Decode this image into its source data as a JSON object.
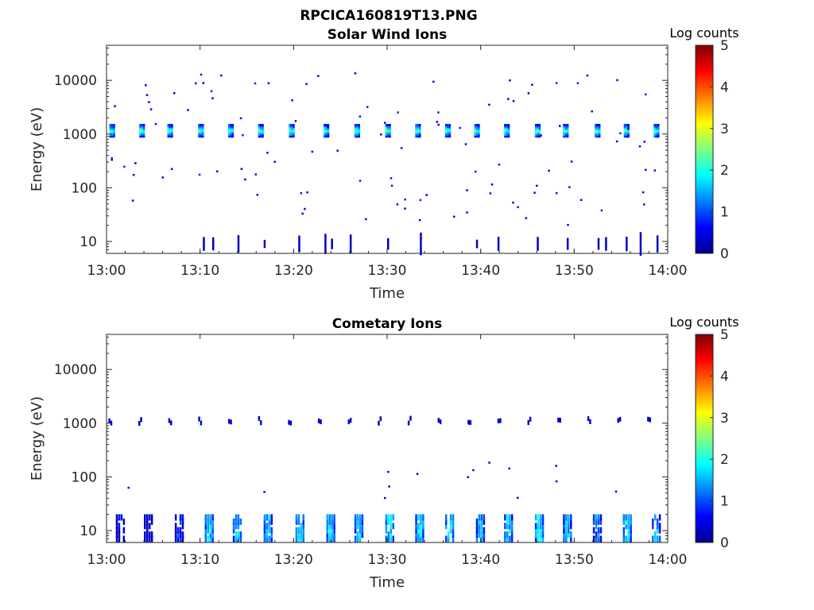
{
  "figure": {
    "title": "RPCICA160819T13.PNG"
  },
  "chart_data": [
    {
      "type": "heatmap",
      "title": "Solar Wind Ions",
      "xlabel": "Time",
      "ylabel": "Energy (eV)",
      "x_ticks": [
        "13:00",
        "13:10",
        "13:20",
        "13:30",
        "13:40",
        "13:50",
        "14:00"
      ],
      "y_ticks": [
        "10",
        "100",
        "1000",
        "10000"
      ],
      "y_scale": "log",
      "ylim": [
        6,
        45000
      ],
      "xlim": [
        "13:00",
        "14:00"
      ],
      "colorbar": {
        "label": "Log counts",
        "ticks": [
          "0",
          "1",
          "2",
          "3",
          "4",
          "5"
        ],
        "range": [
          0,
          5
        ],
        "colormap": "jet"
      },
      "features": {
        "beam_energy_eV": 1150,
        "beam_times_min": [
          0.3,
          3.5,
          6.5,
          9.8,
          13.0,
          16.2,
          19.5,
          23.2,
          26.5,
          29.8,
          33.0,
          36.2,
          39.3,
          42.5,
          45.8,
          48.8,
          52.2,
          55.3,
          58.5
        ],
        "beam_peak_logcounts": 2.4,
        "low_energy_streak_times_min": [
          10.3,
          11.3,
          14.0,
          16.8,
          20.5,
          23.3,
          24.0,
          26.0,
          30.0,
          33.5,
          39.5,
          41.8,
          46.0,
          49.2,
          52.5,
          53.3,
          55.5,
          57.0,
          58.8
        ],
        "low_energy_streak_logcounts": 0.3
      }
    },
    {
      "type": "heatmap",
      "title": "Cometary Ions",
      "xlabel": "Time",
      "ylabel": "Energy (eV)",
      "x_ticks": [
        "13:00",
        "13:10",
        "13:20",
        "13:30",
        "13:40",
        "13:50",
        "14:00"
      ],
      "y_ticks": [
        "10",
        "100",
        "1000",
        "10000"
      ],
      "y_scale": "log",
      "ylim": [
        6,
        45000
      ],
      "xlim": [
        "13:00",
        "14:00"
      ],
      "colorbar": {
        "label": "Log counts",
        "ticks": [
          "0",
          "1",
          "2",
          "3",
          "4",
          "5"
        ],
        "range": [
          0,
          5
        ],
        "colormap": "jet"
      },
      "features": {
        "faint_band_energy_eV": 1100,
        "faint_band_logcounts": 0.4,
        "low_energy_block_times_min": [
          1.0,
          4.0,
          7.3,
          10.5,
          13.5,
          16.8,
          20.2,
          23.5,
          26.5,
          29.8,
          33.0,
          36.2,
          39.5,
          42.5,
          45.8,
          48.8,
          52.0,
          55.2,
          58.3
        ],
        "low_energy_block_logcounts": [
          0.4,
          0.3,
          0.8,
          1.6,
          1.4,
          1.5,
          1.5,
          1.6,
          1.5,
          1.6,
          1.7,
          1.6,
          1.5,
          1.5,
          1.7,
          1.5,
          1.2,
          1.6,
          1.4
        ]
      }
    }
  ]
}
